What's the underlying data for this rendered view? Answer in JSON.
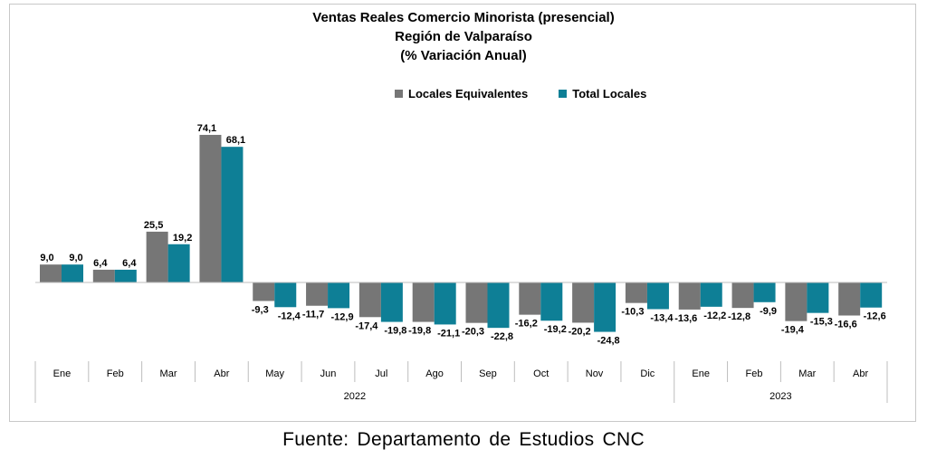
{
  "chart_data": {
    "type": "bar",
    "title": "Ventas Reales Comercio Minorista (presencial)",
    "subtitle": "Región de Valparaíso",
    "subtitle2": "(% Variación Anual)",
    "categories": [
      "Ene",
      "Feb",
      "Mar",
      "Abr",
      "May",
      "Jun",
      "Jul",
      "Ago",
      "Sep",
      "Oct",
      "Nov",
      "Dic",
      "Ene",
      "Feb",
      "Mar",
      "Abr"
    ],
    "year_groups": [
      {
        "label": "2022",
        "count": 12
      },
      {
        "label": "2023",
        "count": 4
      }
    ],
    "series": [
      {
        "name": "Locales Equivalentes",
        "color": "#767676",
        "values": [
          9.0,
          6.4,
          25.5,
          74.1,
          -9.3,
          -11.7,
          -17.4,
          -19.8,
          -20.3,
          -16.2,
          -20.2,
          -10.3,
          -13.6,
          -12.8,
          -19.4,
          -16.6
        ],
        "labels": [
          "9,0",
          "6,4",
          "25,5",
          "74,1",
          "-9,3",
          "-11,7",
          "-17,4",
          "-19,8",
          "-20,3",
          "-16,2",
          "-20,2",
          "-10,3",
          "-13,6",
          "-12,8",
          "-19,4",
          "-16,6"
        ]
      },
      {
        "name": "Total Locales",
        "color": "#0e7f96",
        "values": [
          9.0,
          6.4,
          19.2,
          68.1,
          -12.4,
          -12.9,
          -19.8,
          -21.1,
          -22.8,
          -19.2,
          -24.8,
          -13.4,
          -12.2,
          -9.9,
          -15.3,
          -12.6
        ],
        "labels": [
          "9,0",
          "6,4",
          "19,2",
          "68,1",
          "-12,4",
          "-12,9",
          "-19,8",
          "-21,1",
          "-22,8",
          "-19,2",
          "-24,8",
          "-13,4",
          "-12,2",
          "-9,9",
          "-15,3",
          "-12,6"
        ]
      }
    ],
    "legend_position": "top",
    "grid": false
  },
  "source_text": "Fuente: Departamento de Estudios CNC"
}
